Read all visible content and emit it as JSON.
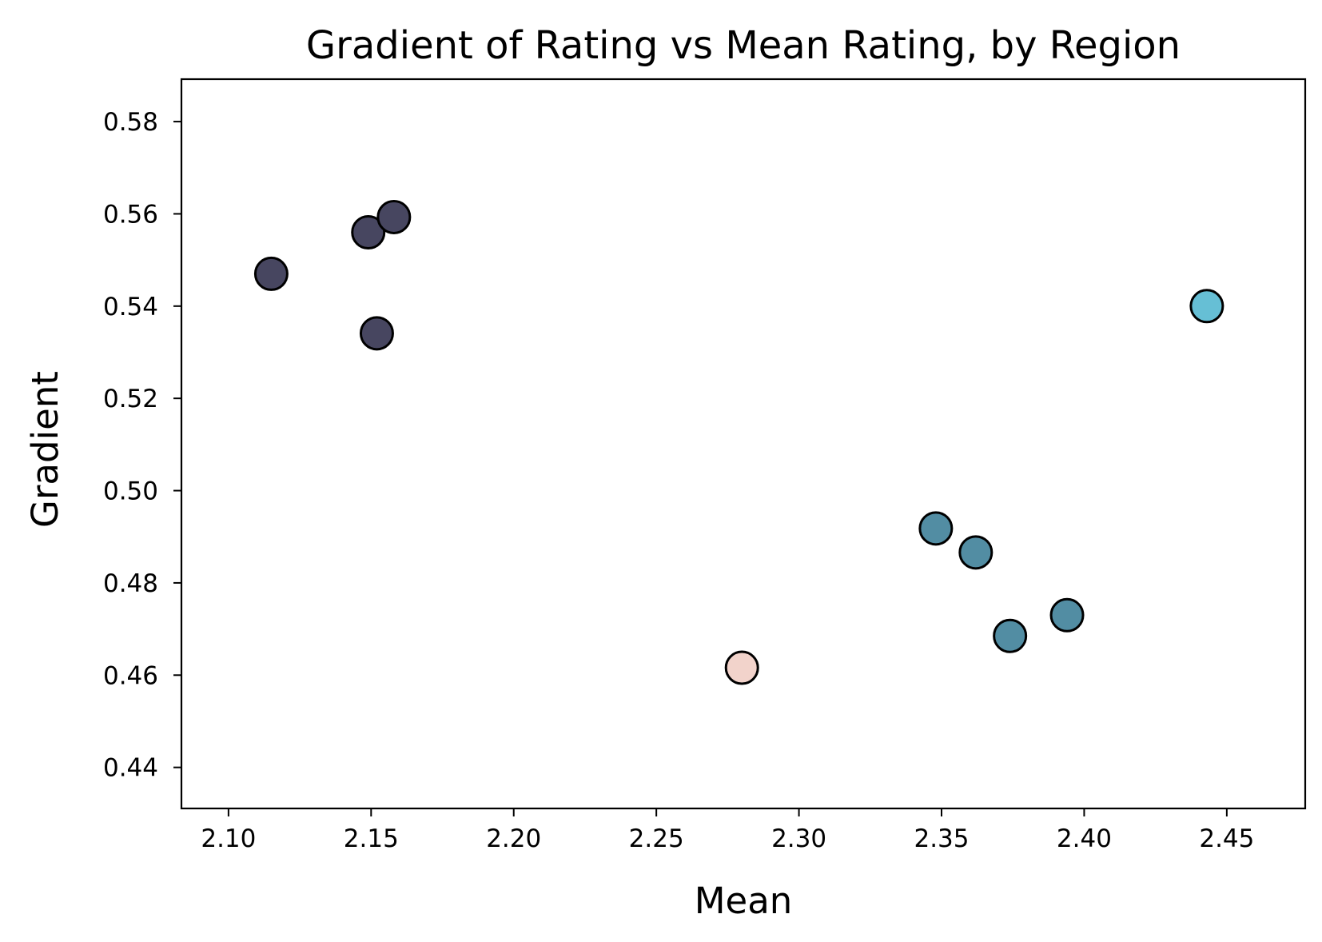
{
  "chart_data": {
    "type": "scatter",
    "title": "Gradient of Rating vs Mean Rating, by Region",
    "xlabel": "Mean",
    "ylabel": "Gradient",
    "xlim": [
      2.0835,
      2.4775
    ],
    "ylim": [
      0.4311,
      0.5892
    ],
    "xticks": [
      "2.10",
      "2.15",
      "2.20",
      "2.25",
      "2.30",
      "2.35",
      "2.40",
      "2.45"
    ],
    "yticks": [
      "0.44",
      "0.46",
      "0.48",
      "0.50",
      "0.52",
      "0.54",
      "0.56",
      "0.58"
    ],
    "grid": false,
    "legend": "none",
    "points": [
      {
        "x": 2.115,
        "y": 0.547,
        "color": "#474660"
      },
      {
        "x": 2.149,
        "y": 0.556,
        "color": "#474660"
      },
      {
        "x": 2.158,
        "y": 0.5593,
        "color": "#474660"
      },
      {
        "x": 2.152,
        "y": 0.5341,
        "color": "#474660"
      },
      {
        "x": 2.28,
        "y": 0.4616,
        "color": "#f2d3cb"
      },
      {
        "x": 2.348,
        "y": 0.4918,
        "color": "#528da3"
      },
      {
        "x": 2.362,
        "y": 0.4866,
        "color": "#528da3"
      },
      {
        "x": 2.374,
        "y": 0.4685,
        "color": "#528da3"
      },
      {
        "x": 2.394,
        "y": 0.473,
        "color": "#528da3"
      },
      {
        "x": 2.443,
        "y": 0.54,
        "color": "#66bfd5"
      }
    ]
  }
}
